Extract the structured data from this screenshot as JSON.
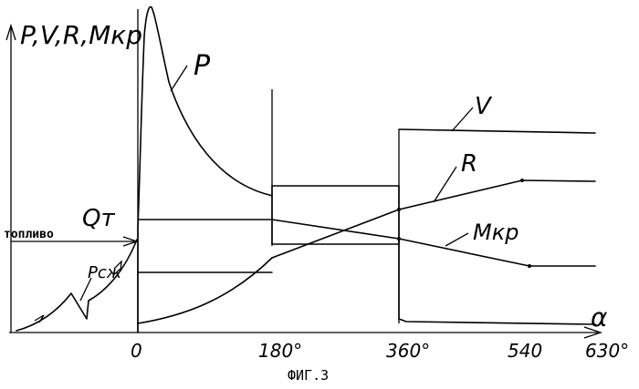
{
  "figure": {
    "y_axis_label": "P,V,R,Mкр",
    "x_axis_label": "α",
    "caption": "ФИГ.3",
    "fuel_label": "топливо",
    "fuel_symbol": "Qт",
    "ticks": [
      "0",
      "180°",
      "360°",
      "540",
      "630°"
    ],
    "curve_labels": {
      "P": "P",
      "V": "V",
      "R": "R",
      "Mkr": "Mкр",
      "Pszh": "Pсж"
    },
    "colors": {
      "ink": "#000000",
      "background": "#ffffff"
    }
  }
}
